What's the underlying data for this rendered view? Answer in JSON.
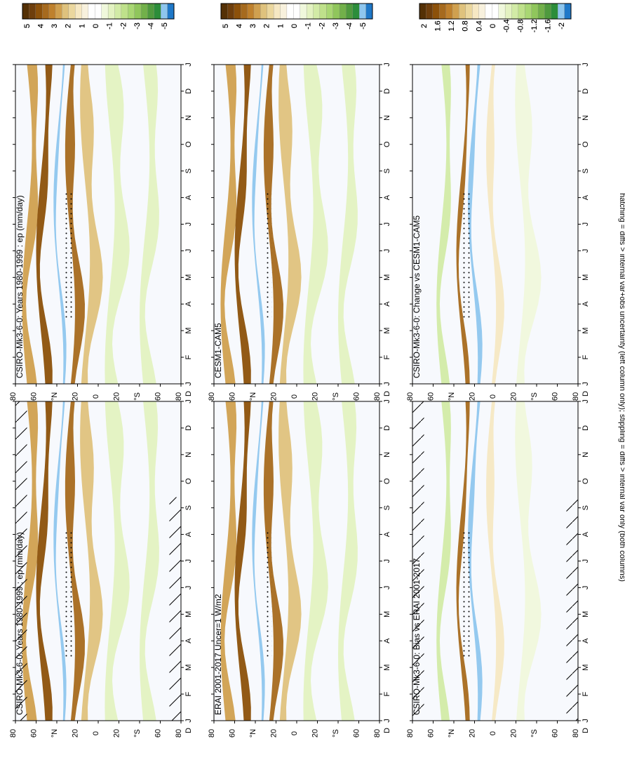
{
  "figure_note": "hatching = diffs > internal var+obs uncertainty (left column only); stippling = diffs > internal var only (both columns)",
  "months": [
    "J",
    "F",
    "M",
    "A",
    "M",
    "J",
    "J",
    "A",
    "S",
    "O",
    "N",
    "D",
    "J"
  ],
  "lead_month": "D",
  "lat_ticks": [
    "80",
    "60",
    "°N",
    "20",
    "0",
    "20",
    "°S",
    "60",
    "80"
  ],
  "colorbars": {
    "abs": {
      "labels": [
        "5",
        "4",
        "3",
        "2",
        "1",
        "0",
        "-1",
        "-2",
        "-3",
        "-4",
        "-5"
      ],
      "colors": [
        "#543005",
        "#6e3e0c",
        "#8c510a",
        "#a66a1e",
        "#bf812d",
        "#d0a04f",
        "#dfc27d",
        "#ebd79e",
        "#f6e8c3",
        "#f8f1dd",
        "#ffffff",
        "#ffffff",
        "#f0f8dc",
        "#e3f2c1",
        "#d2eba6",
        "#bfe18b",
        "#a9d773",
        "#90c65c",
        "#72b04a",
        "#4f9a3e",
        "#2c8d3a",
        "#8ec6ee",
        "#1f78c8"
      ]
    },
    "diff": {
      "labels": [
        "2",
        "1.6",
        "1.2",
        "0.8",
        "0.4",
        "0",
        "-0.4",
        "-0.8",
        "-1.2",
        "-1.6",
        "-2"
      ],
      "colors": [
        "#543005",
        "#6e3e0c",
        "#8c510a",
        "#a66a1e",
        "#bf812d",
        "#d0a04f",
        "#dfc27d",
        "#ebd79e",
        "#f6e8c3",
        "#f8f1dd",
        "#ffffff",
        "#ffffff",
        "#f0f8dc",
        "#e3f2c1",
        "#d2eba6",
        "#bfe18b",
        "#a9d773",
        "#90c65c",
        "#72b04a",
        "#4f9a3e",
        "#2c8d3a",
        "#8ec6ee",
        "#1f78c8"
      ]
    }
  },
  "chart_data": [
    {
      "id": "p1",
      "type": "heatmap",
      "title": "CSIRO-Mk3-6-0: Years 1980-1999 : ep (mm/day)",
      "variable": "ep",
      "units": "mm/day",
      "x": "month (Dec to Jan)",
      "y": "latitude (80N to 80S)",
      "clim": [
        -5,
        5
      ],
      "colorbar": "abs",
      "hatching": true
    },
    {
      "id": "p2",
      "type": "heatmap",
      "title": "CSIRO-Mk3-6-0: Years 1980-1999 : ep (mm/day)",
      "variable": "ep",
      "units": "mm/day",
      "x": "month (Dec to Jan)",
      "y": "latitude (80N to 80S)",
      "clim": [
        -5,
        5
      ],
      "colorbar": "abs",
      "hatching": false
    },
    {
      "id": "p3",
      "type": "heatmap",
      "title": "ERAI 2001-2017 Uncer=1 W/m2",
      "clim": [
        -5,
        5
      ],
      "colorbar": "abs",
      "hatching": false
    },
    {
      "id": "p4",
      "type": "heatmap",
      "title": "CESM1-CAM5",
      "clim": [
        -5,
        5
      ],
      "colorbar": "abs",
      "hatching": false
    },
    {
      "id": "p5",
      "type": "heatmap",
      "title": "CSIRO-Mk3-6-0: Bias vs ERAI 2001-2017",
      "clim": [
        -2,
        2
      ],
      "colorbar": "diff",
      "hatching": true
    },
    {
      "id": "p6",
      "type": "heatmap",
      "title": "CSIRO-Mk3-6-0: Change vs CESM1-CAM5",
      "clim": [
        -2,
        2
      ],
      "colorbar": "diff",
      "hatching": false
    }
  ]
}
